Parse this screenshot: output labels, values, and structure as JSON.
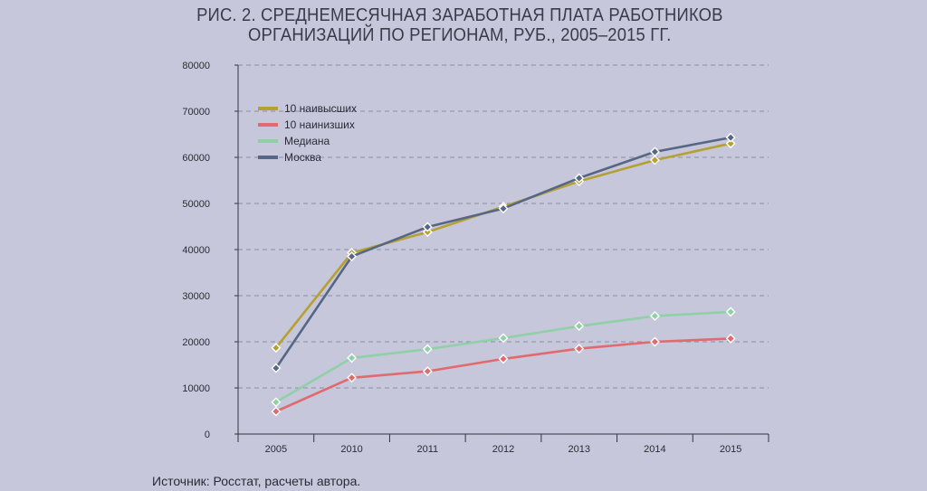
{
  "title_lines": [
    "РИС. 2. СРЕДНЕМЕСЯЧНАЯ ЗАРАБОТНАЯ ПЛАТА РАБОТНИКОВ",
    "ОРГАНИЗАЦИЙ ПО РЕГИОНАМ, РУБ., 2005–2015 ГГ."
  ],
  "source": "Источник: Росстат, расчеты автора.",
  "chart_data": {
    "type": "line",
    "title": "РИС. 2. СРЕДНЕМЕСЯЧНАЯ ЗАРАБОТНАЯ ПЛАТА РАБОТНИКОВ ОРГАНИЗАЦИЙ ПО РЕГИОНАМ, РУБ., 2005–2015 ГГ.",
    "xlabel": "",
    "ylabel": "",
    "categories": [
      "2005",
      "2010",
      "2011",
      "2012",
      "2013",
      "2014",
      "2015"
    ],
    "ylim": [
      0,
      80000
    ],
    "y_ticks": [
      "0",
      "10000",
      "20000",
      "30000",
      "40000",
      "50000",
      "60000",
      "70000",
      "80000"
    ],
    "grid": true,
    "legend_position": "top-left",
    "series": [
      {
        "name": "10 наивысших",
        "color": "#b5a032",
        "values": [
          18700,
          39300,
          43800,
          49300,
          54800,
          59400,
          63000
        ]
      },
      {
        "name": "10 наинизших",
        "color": "#e06a6e",
        "values": [
          4900,
          12200,
          13600,
          16300,
          18500,
          20000,
          20700
        ]
      },
      {
        "name": "Медиана",
        "color": "#8fd0a6",
        "values": [
          6900,
          16500,
          18400,
          20800,
          23400,
          25600,
          26500
        ]
      },
      {
        "name": "Москва",
        "color": "#566684",
        "values": [
          14300,
          38500,
          44900,
          48900,
          55500,
          61200,
          64300
        ]
      }
    ]
  }
}
